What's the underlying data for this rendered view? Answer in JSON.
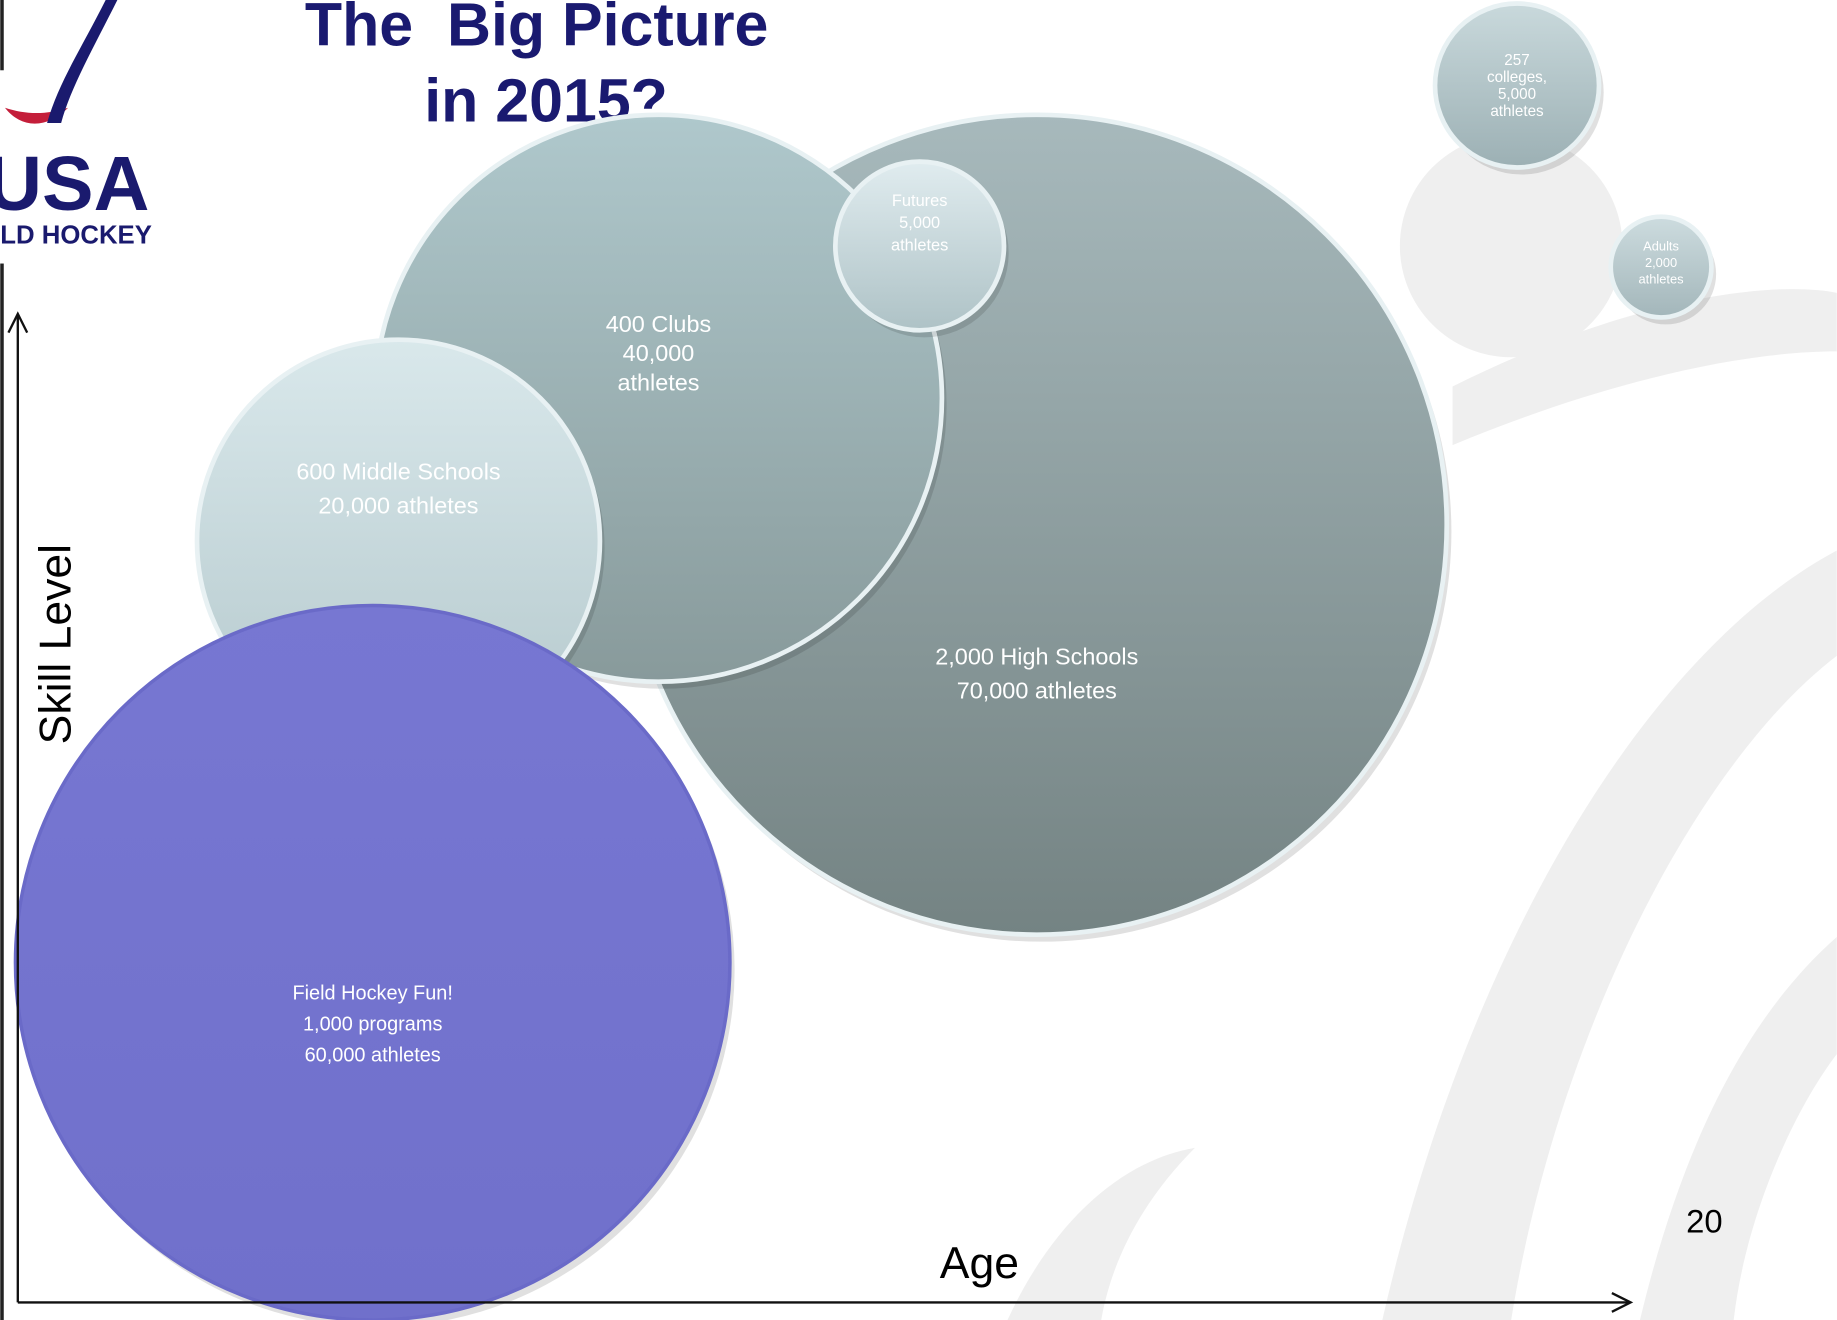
{
  "header": {
    "title_lines": [
      "The  Big Picture",
      "in 2015?"
    ]
  },
  "logo": {
    "mark": "USA",
    "sub": "LD HOCKEY"
  },
  "axes": {
    "y_label": "Skill Level",
    "x_label": "Age"
  },
  "bubbles": [
    {
      "lines": [
        "2,000 High Schools",
        "70,000 athletes"
      ]
    },
    {
      "lines": [
        "400 Clubs",
        "40,000",
        "athletes"
      ]
    },
    {
      "lines": [
        "Futures",
        "5,000",
        "athletes"
      ]
    },
    {
      "lines": [
        "600 Middle Schools",
        "20,000 athletes"
      ]
    },
    {
      "lines": [
        "Field Hockey Fun!",
        "1,000 programs",
        "60,000 athletes"
      ]
    },
    {
      "lines": [
        "257",
        "colleges,",
        "5,000",
        "athletes"
      ]
    },
    {
      "lines": [
        "Adults",
        "2,000",
        "athletes"
      ]
    }
  ],
  "page_number": "20"
}
